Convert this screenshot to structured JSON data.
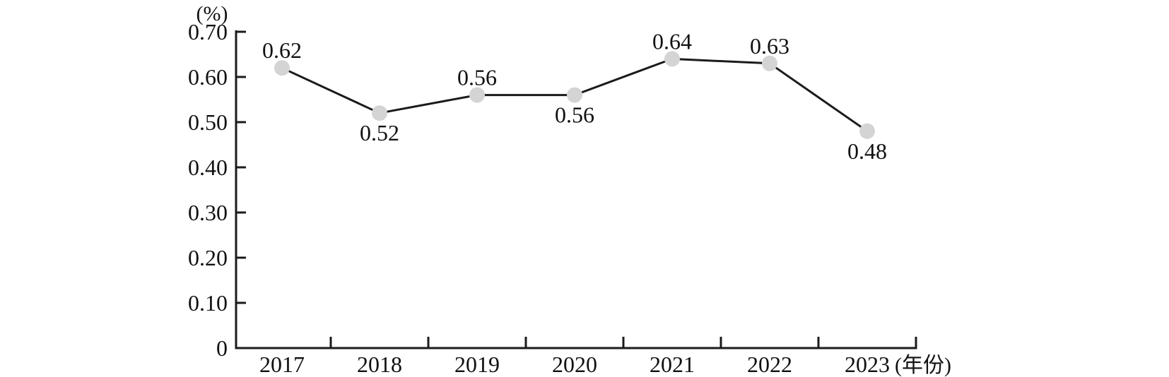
{
  "chart_data": {
    "type": "line",
    "title": "",
    "categories": [
      "2017",
      "2018",
      "2019",
      "2020",
      "2021",
      "2022",
      "2023"
    ],
    "values": [
      0.62,
      0.52,
      0.56,
      0.56,
      0.64,
      0.63,
      0.48
    ],
    "value_labels": [
      "0.62",
      "0.52",
      "0.56",
      "0.56",
      "0.64",
      "0.63",
      "0.48"
    ],
    "value_label_placement": [
      "above",
      "below",
      "above",
      "below",
      "above",
      "above",
      "below"
    ],
    "y_axis_unit": "(%)",
    "x_axis_unit": "(年份)",
    "y_tick_values": [
      0,
      0.1,
      0.2,
      0.3,
      0.4,
      0.5,
      0.6,
      0.7
    ],
    "y_tick_labels": [
      "0",
      "0.10",
      "0.20",
      "0.30",
      "0.40",
      "0.50",
      "0.60",
      "0.70"
    ],
    "ylim": [
      0,
      0.7
    ],
    "grid": false,
    "legend": "none",
    "colors": {
      "line": "#1b1b1b",
      "marker": "#d4d4d4",
      "axis": "#1b1b1b",
      "text": "#111111"
    }
  }
}
